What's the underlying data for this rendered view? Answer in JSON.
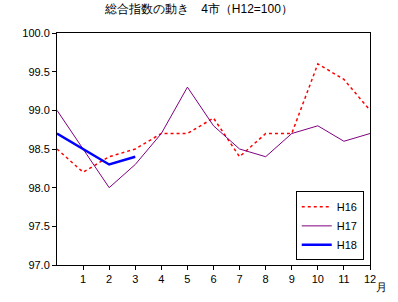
{
  "chart_data": {
    "type": "line",
    "title": "総合指数の動き　4市（H12=100）",
    "x_label": "月",
    "categories": [
      null,
      "1",
      "2",
      "3",
      "4",
      "5",
      "6",
      "7",
      "8",
      "9",
      "10",
      "11",
      "12"
    ],
    "series": [
      {
        "name": "H16",
        "color": "#ff0000",
        "line_style": "dotted",
        "values": [
          98.5,
          98.2,
          98.4,
          98.5,
          98.7,
          98.7,
          98.9,
          98.4,
          98.7,
          98.7,
          99.6,
          99.4,
          99.0
        ]
      },
      {
        "name": "H17",
        "color": "#800080",
        "line_style": "solid",
        "values": [
          99.0,
          98.5,
          98.0,
          98.3,
          98.7,
          99.3,
          98.8,
          98.5,
          98.4,
          98.7,
          98.8,
          98.6,
          98.7
        ]
      },
      {
        "name": "H18",
        "color": "#0000ff",
        "line_style": "thick",
        "values": [
          98.7,
          98.5,
          98.3,
          98.4,
          null,
          null,
          null,
          null,
          null,
          null,
          null,
          null,
          null
        ]
      }
    ],
    "ylim": [
      97.0,
      100.0
    ],
    "yticks": [
      {
        "value": 97.0,
        "label": "97.0"
      },
      {
        "value": 97.5,
        "label": "97.5"
      },
      {
        "value": 98.0,
        "label": "98.0"
      },
      {
        "value": 98.5,
        "label": "98.5"
      },
      {
        "value": 99.0,
        "label": "99.0"
      },
      {
        "value": 99.5,
        "label": "99.5"
      },
      {
        "value": 100.0,
        "label": "100.0"
      }
    ],
    "grid": false,
    "legend": "lower right"
  }
}
